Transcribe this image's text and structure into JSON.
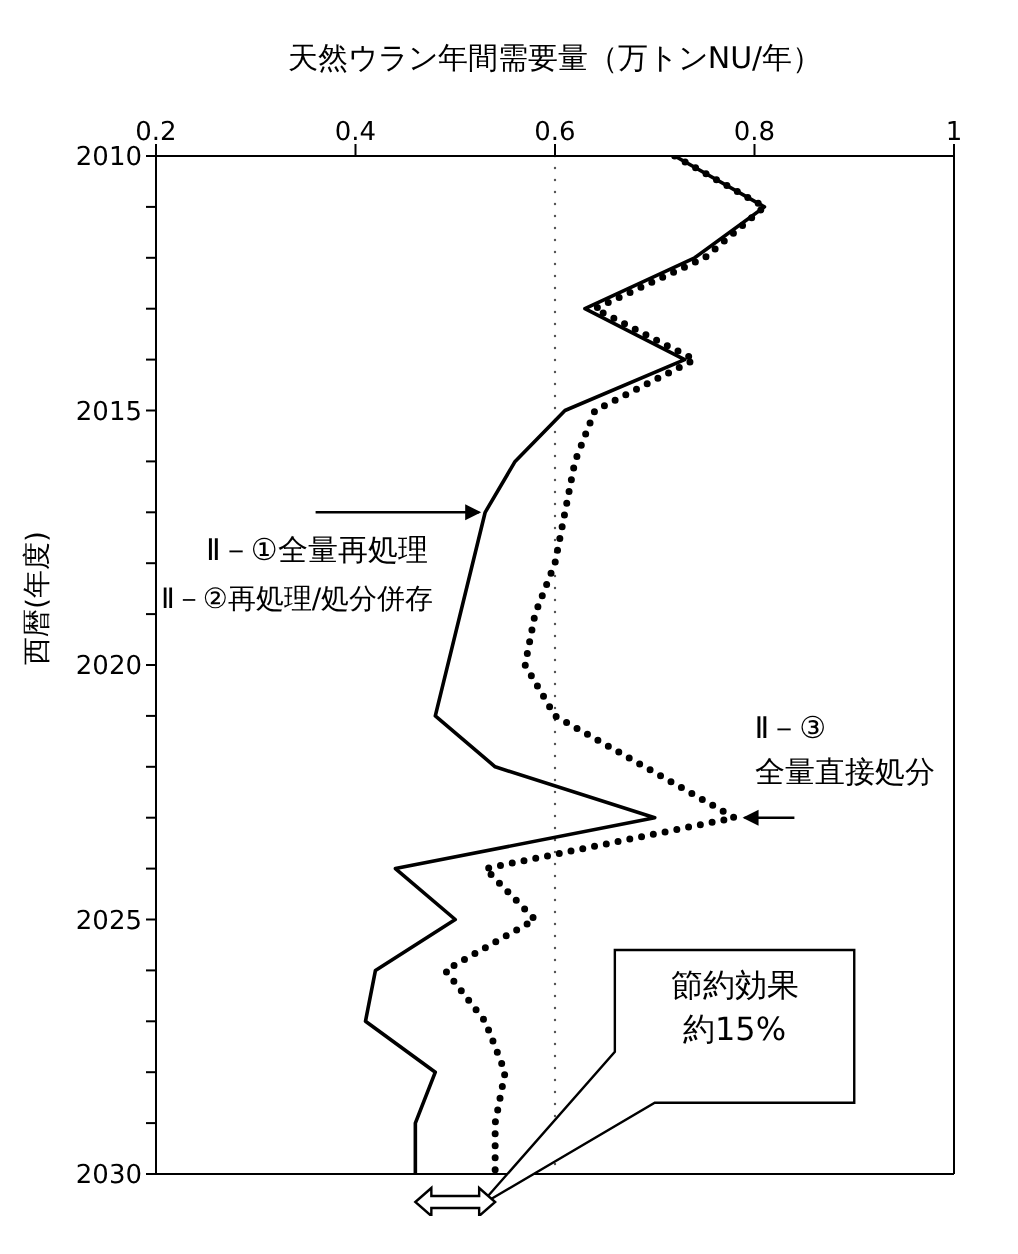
{
  "chart_data": {
    "type": "line",
    "orientation": "horizontal",
    "xlabel": "天然ウラン年間需要量（万トンNU/年）",
    "ylabel": "西暦(年度)",
    "xlim": [
      0.2,
      1.0
    ],
    "xticks": [
      0.2,
      0.4,
      0.6,
      0.8,
      1.0
    ],
    "ylim": [
      2030,
      2010
    ],
    "yticks": [
      2010,
      {
        "value": 2011,
        "label": null
      },
      {
        "value": 2012,
        "label": null
      },
      {
        "value": 2013,
        "label": null
      },
      {
        "value": 2014,
        "label": null
      },
      2015,
      {
        "value": 2016,
        "label": null
      },
      {
        "value": 2017,
        "label": null
      },
      {
        "value": 2018,
        "label": null
      },
      {
        "value": 2019,
        "label": null
      },
      2020,
      {
        "value": 2021,
        "label": null
      },
      {
        "value": 2022,
        "label": null
      },
      {
        "value": 2023,
        "label": null
      },
      {
        "value": 2024,
        "label": null
      },
      2025,
      {
        "value": 2026,
        "label": null
      },
      {
        "value": 2027,
        "label": null
      },
      {
        "value": 2028,
        "label": null
      },
      {
        "value": 2029,
        "label": null
      },
      2030
    ],
    "series": [
      {
        "name": "Ⅱ－①全量再処理",
        "color": "#000000",
        "line_style": "solid",
        "x": [
          2010,
          2011,
          2012,
          2013,
          2014,
          2015,
          2016,
          2017,
          2021,
          2022,
          2023,
          2024,
          2025,
          2026,
          2027,
          2028,
          2029,
          2030
        ],
        "values": [
          0.72,
          0.81,
          0.74,
          0.63,
          0.73,
          0.61,
          0.56,
          0.53,
          0.48,
          0.54,
          0.7,
          0.44,
          0.5,
          0.42,
          0.41,
          0.48,
          0.46,
          0.46
        ]
      },
      {
        "name": "Ⅱ－③全量直接処分",
        "color": "#000000",
        "line_style": "dotted",
        "x": [
          2010,
          2011,
          2012,
          2013,
          2014,
          2015,
          2016,
          2017,
          2018,
          2019,
          2020,
          2021,
          2022,
          2023,
          2024,
          2025,
          2026,
          2027,
          2028,
          2029,
          2030
        ],
        "values": [
          0.72,
          0.81,
          0.75,
          0.64,
          0.74,
          0.64,
          0.62,
          0.61,
          0.6,
          0.58,
          0.57,
          0.6,
          0.69,
          0.78,
          0.53,
          0.58,
          0.49,
          0.53,
          0.55,
          0.54,
          0.54
        ]
      }
    ],
    "ref_lines": [
      {
        "axis": "x",
        "value": 0.6,
        "line_style": "dotted",
        "color": "#555555"
      }
    ],
    "annotations": [
      "Ⅱ－②再処理/処分併存",
      "節約効果",
      "約15%"
    ]
  }
}
